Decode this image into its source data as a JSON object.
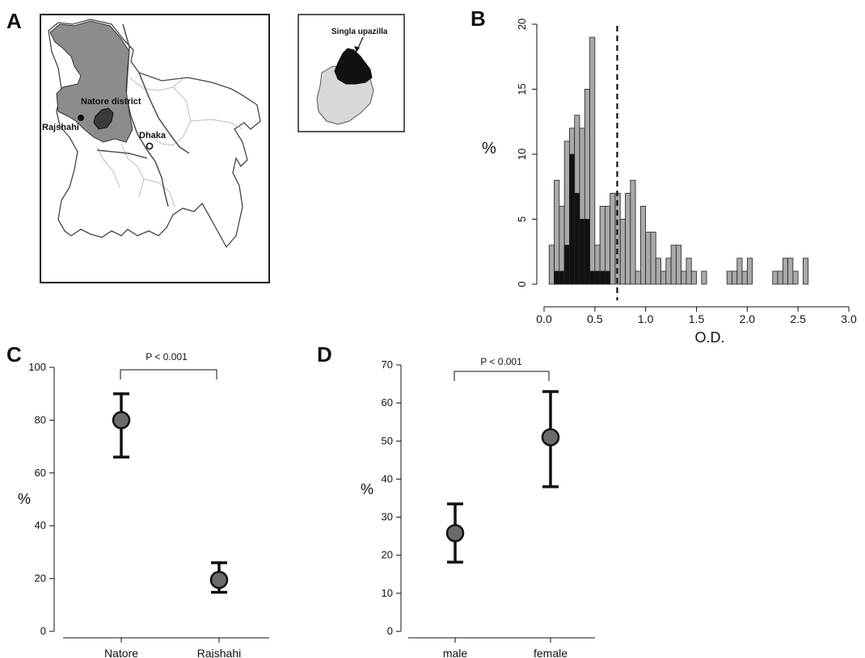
{
  "panels": {
    "a": {
      "label": "A"
    },
    "b": {
      "label": "B"
    },
    "c": {
      "label": "C"
    },
    "d": {
      "label": "D"
    }
  },
  "map": {
    "labels": {
      "natore": "Natore district",
      "rajshahi": "Rajshahi",
      "dhaka": "Dhaka",
      "singla": "Singla upazilla"
    },
    "colors": {
      "district": "#8c8c8c",
      "upazilla": "#111111",
      "inset_district": "#d8d8d8",
      "land": "#ffffff",
      "border": "#555555"
    }
  },
  "chart_data": [
    {
      "type": "bar",
      "panel": "B",
      "title": "",
      "xlabel": "O.D.",
      "ylabel": "%",
      "xlim": [
        0,
        3.0
      ],
      "ylim": [
        0,
        20
      ],
      "xticks": [
        "0.0",
        "0.5",
        "1.0",
        "1.5",
        "2.0",
        "2.5",
        "3.0"
      ],
      "yticks": [
        "0",
        "5",
        "10",
        "15",
        "20"
      ],
      "bin_width": 0.05,
      "cutoff": 0.72,
      "series": [
        {
          "color": "#a9a9a9",
          "bins": [
            [
              0.05,
              3
            ],
            [
              0.1,
              8
            ],
            [
              0.15,
              6
            ],
            [
              0.2,
              11
            ],
            [
              0.25,
              12
            ],
            [
              0.3,
              13
            ],
            [
              0.35,
              12
            ],
            [
              0.4,
              15
            ],
            [
              0.45,
              19
            ],
            [
              0.5,
              3
            ],
            [
              0.55,
              6
            ],
            [
              0.6,
              6
            ],
            [
              0.65,
              7
            ],
            [
              0.7,
              7
            ],
            [
              0.75,
              5
            ],
            [
              0.8,
              7
            ],
            [
              0.85,
              8
            ],
            [
              0.9,
              1
            ],
            [
              0.95,
              6
            ],
            [
              1.0,
              4
            ],
            [
              1.05,
              4
            ],
            [
              1.1,
              2
            ],
            [
              1.15,
              1
            ],
            [
              1.2,
              2
            ],
            [
              1.25,
              3
            ],
            [
              1.3,
              3
            ],
            [
              1.35,
              1
            ],
            [
              1.4,
              2
            ],
            [
              1.45,
              1
            ],
            [
              1.5,
              0
            ],
            [
              1.55,
              1
            ],
            [
              1.6,
              0
            ],
            [
              1.65,
              0
            ],
            [
              1.7,
              0
            ],
            [
              1.75,
              0
            ],
            [
              1.8,
              1
            ],
            [
              1.85,
              1
            ],
            [
              1.9,
              2
            ],
            [
              1.95,
              1
            ],
            [
              2.0,
              2
            ],
            [
              2.05,
              0
            ],
            [
              2.1,
              0
            ],
            [
              2.15,
              0
            ],
            [
              2.2,
              0
            ],
            [
              2.25,
              1
            ],
            [
              2.3,
              1
            ],
            [
              2.35,
              2
            ],
            [
              2.4,
              2
            ],
            [
              2.45,
              1
            ],
            [
              2.5,
              0
            ],
            [
              2.55,
              2
            ]
          ]
        },
        {
          "color": "#111111",
          "bins": [
            [
              0.1,
              1
            ],
            [
              0.15,
              1
            ],
            [
              0.2,
              3
            ],
            [
              0.25,
              10
            ],
            [
              0.3,
              7
            ],
            [
              0.35,
              5
            ],
            [
              0.4,
              5
            ],
            [
              0.45,
              1
            ],
            [
              0.5,
              1
            ],
            [
              0.55,
              1
            ],
            [
              0.6,
              1
            ]
          ]
        }
      ]
    },
    {
      "type": "scatter",
      "panel": "C",
      "title": "",
      "xlabel": "",
      "ylabel": "%",
      "ylim": [
        0,
        100
      ],
      "yticks": [
        "0",
        "20",
        "40",
        "60",
        "80",
        "100"
      ],
      "categories": [
        "Natore",
        "Rajshahi"
      ],
      "values": [
        80,
        19.5
      ],
      "lower": [
        66,
        14.8
      ],
      "upper": [
        90,
        26
      ],
      "annotation": "P < 0.001"
    },
    {
      "type": "scatter",
      "panel": "D",
      "title": "",
      "xlabel": "",
      "ylabel": "%",
      "ylim": [
        0,
        70
      ],
      "yticks": [
        "0",
        "10",
        "20",
        "30",
        "40",
        "50",
        "60",
        "70"
      ],
      "categories": [
        "male",
        "female"
      ],
      "values": [
        25.8,
        51
      ],
      "lower": [
        18.2,
        38
      ],
      "upper": [
        33.5,
        63
      ],
      "annotation": "P < 0.001"
    }
  ]
}
